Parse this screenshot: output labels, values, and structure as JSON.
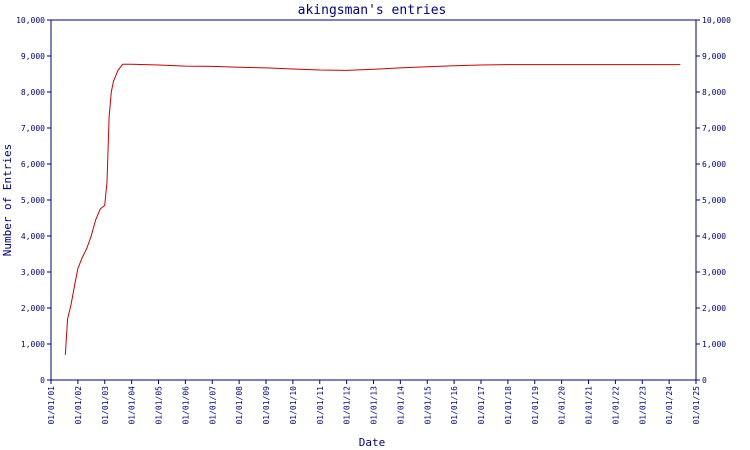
{
  "chart_data": {
    "type": "line",
    "title": "akingsman's entries",
    "xlabel": "Date",
    "ylabel": "Number of Entries",
    "ylim": [
      0,
      10000
    ],
    "yticks": [
      0,
      1000,
      2000,
      3000,
      4000,
      5000,
      6000,
      7000,
      8000,
      9000,
      10000
    ],
    "ytick_labels": [
      "0",
      "1,000",
      "2,000",
      "3,000",
      "4,000",
      "5,000",
      "6,000",
      "7,000",
      "8,000",
      "9,000",
      "10,000"
    ],
    "xtick_labels": [
      "01/01/01",
      "01/01/02",
      "01/01/03",
      "01/01/04",
      "01/01/05",
      "01/01/06",
      "01/01/07",
      "01/01/08",
      "01/01/09",
      "01/01/10",
      "01/01/11",
      "01/01/12",
      "01/01/13",
      "01/01/14",
      "01/01/15",
      "01/01/16",
      "01/01/17",
      "01/01/18",
      "01/01/19",
      "01/01/20",
      "01/01/21",
      "01/01/22",
      "01/01/23",
      "01/01/24",
      "01/01/25"
    ],
    "xlim": [
      "2001-01-01",
      "2025-01-01"
    ],
    "grid": false,
    "series": [
      {
        "color": "#cc0000",
        "x": [
          "2001-07-15",
          "2001-08-15",
          "2001-10-01",
          "2001-11-15",
          "2002-01-01",
          "2002-03-01",
          "2002-05-01",
          "2002-07-01",
          "2002-09-01",
          "2002-11-01",
          "2003-01-01",
          "2003-02-01",
          "2003-03-01",
          "2003-04-01",
          "2003-05-01",
          "2003-07-01",
          "2003-09-01",
          "2004-01-01",
          "2005-01-01",
          "2006-01-01",
          "2007-01-01",
          "2008-01-01",
          "2009-01-01",
          "2010-01-01",
          "2011-01-01",
          "2012-01-01",
          "2013-01-01",
          "2014-01-01",
          "2015-01-01",
          "2016-01-01",
          "2017-01-01",
          "2018-01-01",
          "2019-01-01",
          "2020-01-01",
          "2021-01-01",
          "2022-01-01",
          "2023-01-01",
          "2024-01-01",
          "2024-06-01"
        ],
        "y": [
          700,
          1700,
          2100,
          2600,
          3100,
          3400,
          3650,
          4000,
          4450,
          4750,
          4850,
          5500,
          7300,
          8000,
          8300,
          8600,
          8770,
          8770,
          8750,
          8720,
          8710,
          8690,
          8670,
          8640,
          8610,
          8600,
          8630,
          8670,
          8700,
          8730,
          8750,
          8760,
          8760,
          8760,
          8760,
          8760,
          8760,
          8760,
          8760
        ]
      }
    ]
  }
}
